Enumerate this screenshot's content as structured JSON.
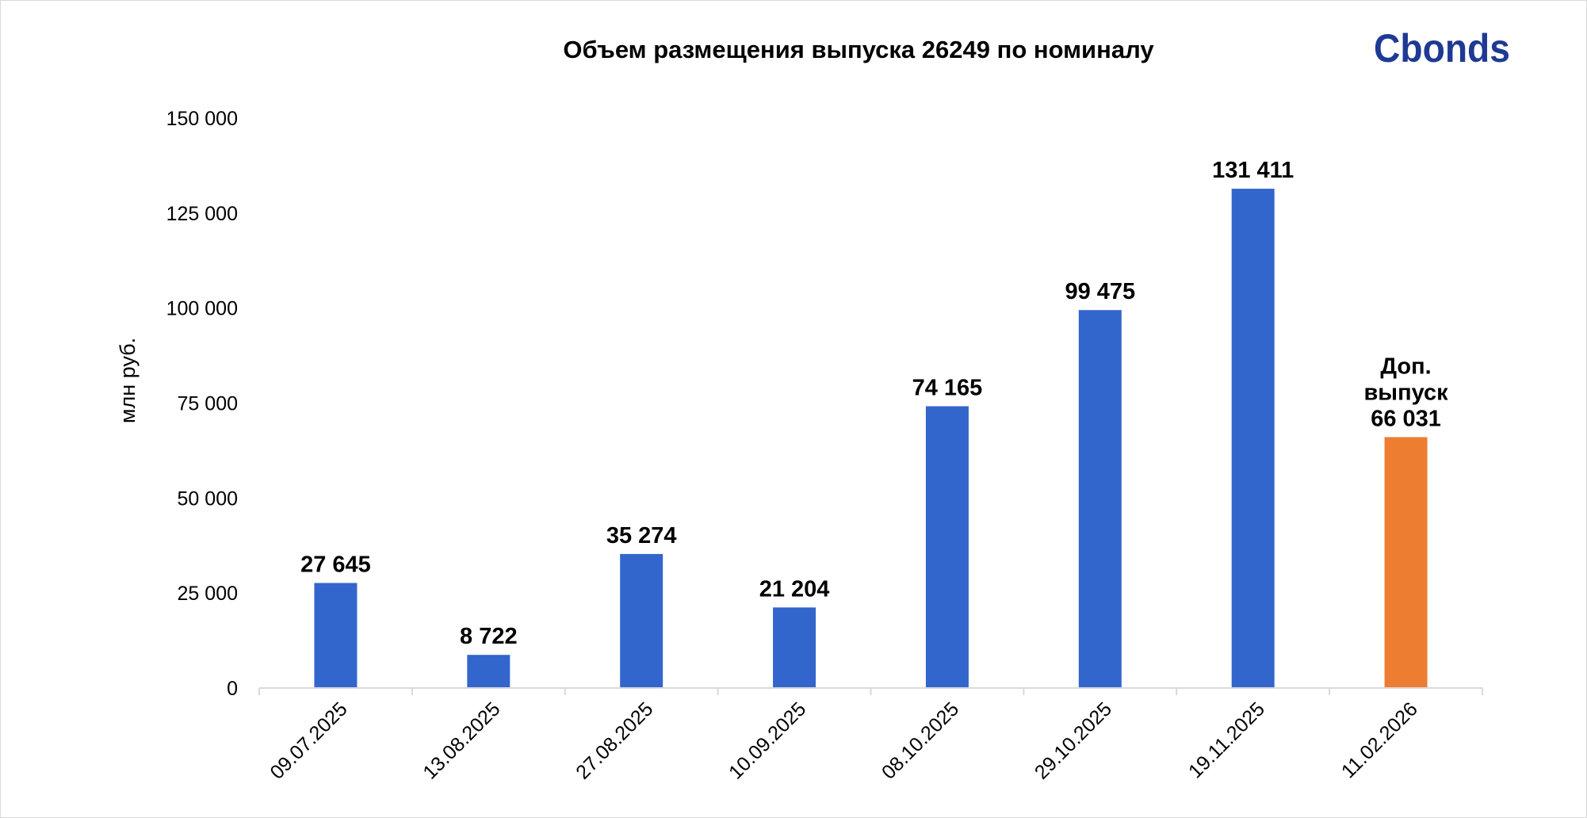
{
  "logo": {
    "text": "Cbonds",
    "color": "#1f3a93",
    "accent": "#f07d00"
  },
  "chart_data": {
    "type": "bar",
    "title": "Объем размещения выпуска 26249 по номиналу",
    "ylabel": "млн руб.",
    "xlabel": "",
    "ylim": [
      0,
      150000
    ],
    "yticks": [
      0,
      25000,
      50000,
      75000,
      100000,
      125000,
      150000
    ],
    "ytick_labels": [
      "0",
      "25 000",
      "50 000",
      "75 000",
      "100 000",
      "125 000",
      "150 000"
    ],
    "grid": false,
    "categories": [
      "09.07.2025",
      "13.08.2025",
      "27.08.2025",
      "10.09.2025",
      "08.10.2025",
      "29.10.2025",
      "19.11.2025",
      "11.02.2026"
    ],
    "values": [
      27645,
      8722,
      35274,
      21204,
      74165,
      99475,
      131411,
      66031
    ],
    "data_labels": [
      [
        "27 645"
      ],
      [
        "8 722"
      ],
      [
        "35 274"
      ],
      [
        "21 204"
      ],
      [
        "74 165"
      ],
      [
        "99 475"
      ],
      [
        "131 411"
      ],
      [
        "Доп.",
        "выпуск",
        "66 031"
      ]
    ],
    "colors": [
      "#3366cc",
      "#3366cc",
      "#3366cc",
      "#3366cc",
      "#3366cc",
      "#3366cc",
      "#3366cc",
      "#ed7d31"
    ]
  }
}
